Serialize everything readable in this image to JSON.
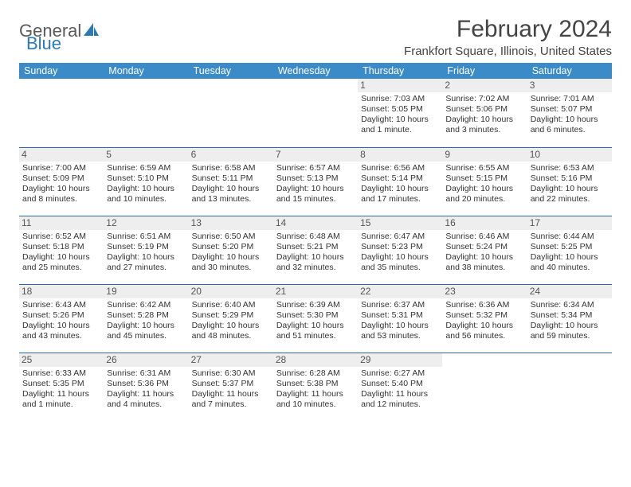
{
  "logo": {
    "text_part1": "General",
    "text_part2": "Blue",
    "icon_color": "#2a7ab8"
  },
  "header": {
    "month_title": "February 2024",
    "location": "Frankfort Square, Illinois, United States"
  },
  "colors": {
    "header_bar": "#3b8bc8",
    "rule": "#2a6aa0",
    "daynum_bg": "#eeeeee",
    "text": "#333333"
  },
  "days_of_week": [
    "Sunday",
    "Monday",
    "Tuesday",
    "Wednesday",
    "Thursday",
    "Friday",
    "Saturday"
  ],
  "weeks": [
    [
      null,
      null,
      null,
      null,
      {
        "n": "1",
        "sunrise": "Sunrise: 7:03 AM",
        "sunset": "Sunset: 5:05 PM",
        "daylight": "Daylight: 10 hours and 1 minute."
      },
      {
        "n": "2",
        "sunrise": "Sunrise: 7:02 AM",
        "sunset": "Sunset: 5:06 PM",
        "daylight": "Daylight: 10 hours and 3 minutes."
      },
      {
        "n": "3",
        "sunrise": "Sunrise: 7:01 AM",
        "sunset": "Sunset: 5:07 PM",
        "daylight": "Daylight: 10 hours and 6 minutes."
      }
    ],
    [
      {
        "n": "4",
        "sunrise": "Sunrise: 7:00 AM",
        "sunset": "Sunset: 5:09 PM",
        "daylight": "Daylight: 10 hours and 8 minutes."
      },
      {
        "n": "5",
        "sunrise": "Sunrise: 6:59 AM",
        "sunset": "Sunset: 5:10 PM",
        "daylight": "Daylight: 10 hours and 10 minutes."
      },
      {
        "n": "6",
        "sunrise": "Sunrise: 6:58 AM",
        "sunset": "Sunset: 5:11 PM",
        "daylight": "Daylight: 10 hours and 13 minutes."
      },
      {
        "n": "7",
        "sunrise": "Sunrise: 6:57 AM",
        "sunset": "Sunset: 5:13 PM",
        "daylight": "Daylight: 10 hours and 15 minutes."
      },
      {
        "n": "8",
        "sunrise": "Sunrise: 6:56 AM",
        "sunset": "Sunset: 5:14 PM",
        "daylight": "Daylight: 10 hours and 17 minutes."
      },
      {
        "n": "9",
        "sunrise": "Sunrise: 6:55 AM",
        "sunset": "Sunset: 5:15 PM",
        "daylight": "Daylight: 10 hours and 20 minutes."
      },
      {
        "n": "10",
        "sunrise": "Sunrise: 6:53 AM",
        "sunset": "Sunset: 5:16 PM",
        "daylight": "Daylight: 10 hours and 22 minutes."
      }
    ],
    [
      {
        "n": "11",
        "sunrise": "Sunrise: 6:52 AM",
        "sunset": "Sunset: 5:18 PM",
        "daylight": "Daylight: 10 hours and 25 minutes."
      },
      {
        "n": "12",
        "sunrise": "Sunrise: 6:51 AM",
        "sunset": "Sunset: 5:19 PM",
        "daylight": "Daylight: 10 hours and 27 minutes."
      },
      {
        "n": "13",
        "sunrise": "Sunrise: 6:50 AM",
        "sunset": "Sunset: 5:20 PM",
        "daylight": "Daylight: 10 hours and 30 minutes."
      },
      {
        "n": "14",
        "sunrise": "Sunrise: 6:48 AM",
        "sunset": "Sunset: 5:21 PM",
        "daylight": "Daylight: 10 hours and 32 minutes."
      },
      {
        "n": "15",
        "sunrise": "Sunrise: 6:47 AM",
        "sunset": "Sunset: 5:23 PM",
        "daylight": "Daylight: 10 hours and 35 minutes."
      },
      {
        "n": "16",
        "sunrise": "Sunrise: 6:46 AM",
        "sunset": "Sunset: 5:24 PM",
        "daylight": "Daylight: 10 hours and 38 minutes."
      },
      {
        "n": "17",
        "sunrise": "Sunrise: 6:44 AM",
        "sunset": "Sunset: 5:25 PM",
        "daylight": "Daylight: 10 hours and 40 minutes."
      }
    ],
    [
      {
        "n": "18",
        "sunrise": "Sunrise: 6:43 AM",
        "sunset": "Sunset: 5:26 PM",
        "daylight": "Daylight: 10 hours and 43 minutes."
      },
      {
        "n": "19",
        "sunrise": "Sunrise: 6:42 AM",
        "sunset": "Sunset: 5:28 PM",
        "daylight": "Daylight: 10 hours and 45 minutes."
      },
      {
        "n": "20",
        "sunrise": "Sunrise: 6:40 AM",
        "sunset": "Sunset: 5:29 PM",
        "daylight": "Daylight: 10 hours and 48 minutes."
      },
      {
        "n": "21",
        "sunrise": "Sunrise: 6:39 AM",
        "sunset": "Sunset: 5:30 PM",
        "daylight": "Daylight: 10 hours and 51 minutes."
      },
      {
        "n": "22",
        "sunrise": "Sunrise: 6:37 AM",
        "sunset": "Sunset: 5:31 PM",
        "daylight": "Daylight: 10 hours and 53 minutes."
      },
      {
        "n": "23",
        "sunrise": "Sunrise: 6:36 AM",
        "sunset": "Sunset: 5:32 PM",
        "daylight": "Daylight: 10 hours and 56 minutes."
      },
      {
        "n": "24",
        "sunrise": "Sunrise: 6:34 AM",
        "sunset": "Sunset: 5:34 PM",
        "daylight": "Daylight: 10 hours and 59 minutes."
      }
    ],
    [
      {
        "n": "25",
        "sunrise": "Sunrise: 6:33 AM",
        "sunset": "Sunset: 5:35 PM",
        "daylight": "Daylight: 11 hours and 1 minute."
      },
      {
        "n": "26",
        "sunrise": "Sunrise: 6:31 AM",
        "sunset": "Sunset: 5:36 PM",
        "daylight": "Daylight: 11 hours and 4 minutes."
      },
      {
        "n": "27",
        "sunrise": "Sunrise: 6:30 AM",
        "sunset": "Sunset: 5:37 PM",
        "daylight": "Daylight: 11 hours and 7 minutes."
      },
      {
        "n": "28",
        "sunrise": "Sunrise: 6:28 AM",
        "sunset": "Sunset: 5:38 PM",
        "daylight": "Daylight: 11 hours and 10 minutes."
      },
      {
        "n": "29",
        "sunrise": "Sunrise: 6:27 AM",
        "sunset": "Sunset: 5:40 PM",
        "daylight": "Daylight: 11 hours and 12 minutes."
      },
      null,
      null
    ]
  ]
}
